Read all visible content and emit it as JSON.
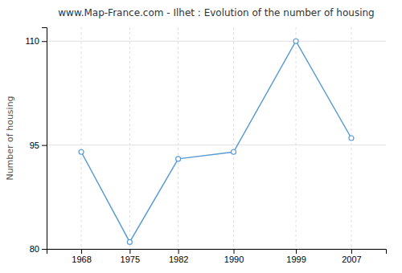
{
  "chart_data": {
    "type": "line",
    "title": "www.Map-France.com - Ilhet : Evolution of the number of housing",
    "y_label": "Number of housing",
    "x": [
      1968,
      1975,
      1982,
      1990,
      1999,
      2007
    ],
    "values": [
      94,
      81,
      93,
      94,
      110,
      96
    ],
    "color": "#5b9bd5",
    "marker": "circle",
    "xlim": [
      1963,
      2012
    ],
    "xticks": [
      1968,
      1975,
      1982,
      1990,
      1999,
      2007
    ],
    "ylim": [
      80,
      112
    ],
    "yticks": [
      80,
      95,
      110
    ],
    "grid": true
  }
}
